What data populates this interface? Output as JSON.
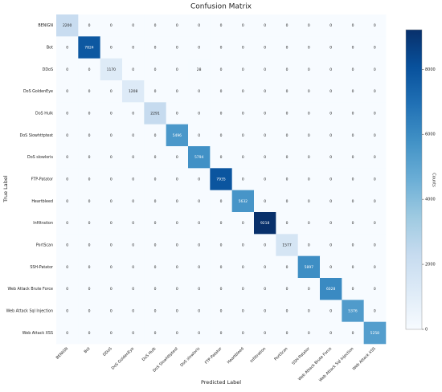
{
  "chart_data": {
    "type": "heatmap",
    "title": "Confusion Matrix",
    "xlabel": "Predicted Label",
    "ylabel": "True Label",
    "colorbar_label": "Counts",
    "x_categories": [
      "BENIGN",
      "Bot",
      "DDoS",
      "DoS GoldenEye",
      "DoS Hulk",
      "DoS Slowhttptest",
      "DoS slowloris",
      "FTP-Patator",
      "Heartbleed",
      "Infiltration",
      "PortScan",
      "SSH-Patator",
      "Web Attack Brute Force",
      "Web Attack Sql Injection",
      "Web Attack XSS"
    ],
    "y_categories": [
      "BENIGN",
      "Bot",
      "DDoS",
      "DoS GoldenEye",
      "DoS Hulk",
      "DoS Slowhttptest",
      "DoS slowloris",
      "FTP-Patator",
      "Heartbleed",
      "Infiltration",
      "PortScan",
      "SSH-Patator",
      "Web Attack Brute Force",
      "Web Attack Sql Injection",
      "Web Attack XSS"
    ],
    "values": [
      [
        2200,
        0,
        0,
        0,
        0,
        0,
        0,
        0,
        0,
        0,
        0,
        0,
        0,
        0,
        0
      ],
      [
        0,
        7824,
        0,
        0,
        0,
        0,
        0,
        0,
        0,
        0,
        0,
        0,
        0,
        0,
        0
      ],
      [
        0,
        0,
        1170,
        0,
        0,
        0,
        28,
        0,
        0,
        0,
        0,
        0,
        0,
        0,
        0
      ],
      [
        0,
        0,
        0,
        1208,
        0,
        0,
        0,
        0,
        0,
        0,
        0,
        0,
        0,
        0,
        0
      ],
      [
        0,
        0,
        0,
        0,
        2291,
        0,
        0,
        0,
        0,
        0,
        0,
        0,
        0,
        0,
        0
      ],
      [
        0,
        0,
        0,
        0,
        0,
        5496,
        0,
        0,
        0,
        0,
        0,
        0,
        0,
        0,
        0
      ],
      [
        0,
        0,
        0,
        0,
        0,
        0,
        5794,
        0,
        0,
        0,
        0,
        0,
        0,
        0,
        0
      ],
      [
        0,
        0,
        0,
        0,
        0,
        0,
        0,
        7935,
        0,
        0,
        0,
        0,
        0,
        0,
        0
      ],
      [
        0,
        0,
        0,
        0,
        0,
        0,
        0,
        0,
        5632,
        0,
        0,
        0,
        0,
        0,
        0
      ],
      [
        0,
        0,
        0,
        0,
        0,
        0,
        0,
        0,
        0,
        9218,
        0,
        0,
        0,
        0,
        0
      ],
      [
        0,
        0,
        0,
        0,
        0,
        0,
        0,
        0,
        0,
        0,
        1577,
        0,
        0,
        0,
        0
      ],
      [
        0,
        0,
        0,
        0,
        0,
        0,
        0,
        0,
        0,
        0,
        0,
        5897,
        0,
        0,
        0
      ],
      [
        0,
        0,
        0,
        0,
        0,
        0,
        0,
        0,
        0,
        0,
        0,
        0,
        6028,
        0,
        0
      ],
      [
        0,
        0,
        0,
        0,
        0,
        0,
        0,
        0,
        0,
        0,
        0,
        0,
        0,
        5376,
        0
      ],
      [
        0,
        0,
        0,
        0,
        0,
        0,
        0,
        0,
        0,
        0,
        0,
        0,
        0,
        0,
        5258
      ]
    ],
    "clim": [
      0,
      9218
    ],
    "cticks": [
      0,
      2000,
      4000,
      6000,
      8000
    ],
    "colormap": "Blues"
  }
}
